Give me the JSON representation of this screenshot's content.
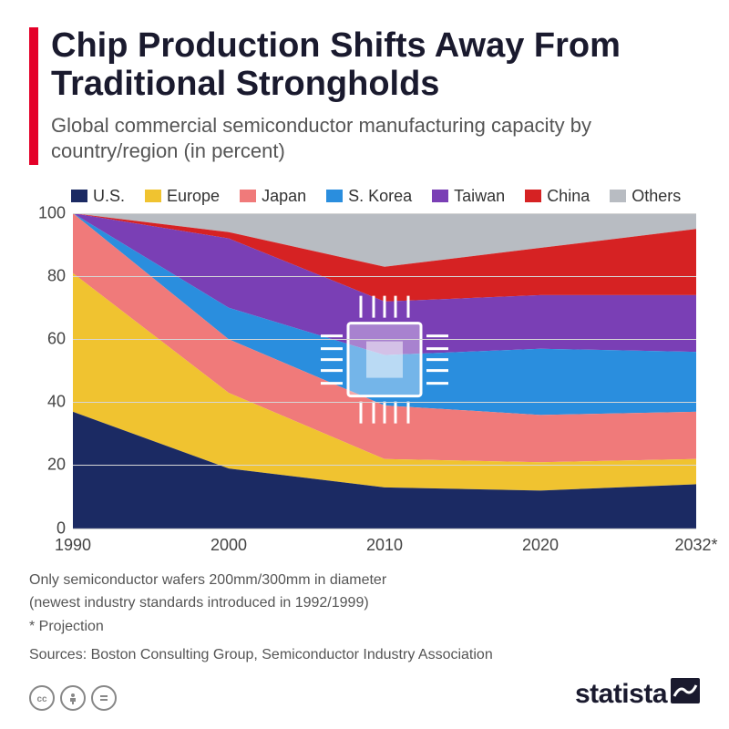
{
  "title": "Chip Production Shifts Away From Traditional Strongholds",
  "subtitle": "Global commercial semiconductor manufacturing capacity by country/region (in percent)",
  "accent_bar_color": "#e40028",
  "chart": {
    "type": "stacked-area",
    "background_color": "#ffffff",
    "grid_color": "#d6d6d6",
    "ylim": [
      0,
      100
    ],
    "ytick_step": 20,
    "label_fontsize": 18,
    "x_categories": [
      "1990",
      "2000",
      "2010",
      "2020",
      "2032*"
    ],
    "series": [
      {
        "name": "U.S.",
        "color": "#1b2a63",
        "values": [
          37,
          19,
          13,
          12,
          14
        ]
      },
      {
        "name": "Europe",
        "color": "#f0c330",
        "values": [
          44,
          24,
          9,
          9,
          8
        ]
      },
      {
        "name": "Japan",
        "color": "#f07a7a",
        "values": [
          19,
          17,
          17,
          15,
          15
        ]
      },
      {
        "name": "S. Korea",
        "color": "#2a8ede",
        "values": [
          0,
          10,
          16,
          21,
          19
        ]
      },
      {
        "name": "Taiwan",
        "color": "#7a3fb5",
        "values": [
          0,
          22,
          17,
          17,
          18
        ]
      },
      {
        "name": "China",
        "color": "#d62223",
        "values": [
          0,
          2,
          11,
          15,
          21
        ]
      },
      {
        "name": "Others",
        "color": "#b8bcc2",
        "values": [
          0,
          6,
          17,
          11,
          5
        ]
      }
    ]
  },
  "legend_fontsize": 18,
  "notes": [
    "Only semiconductor wafers 200mm/300mm in diameter",
    "(newest industry standards introduced in 1992/1999)",
    "* Projection"
  ],
  "source": "Sources: Boston Consulting Group, Semiconductor Industry Association",
  "brand": "statista",
  "cc_icons": [
    "cc",
    "by",
    "nd"
  ]
}
